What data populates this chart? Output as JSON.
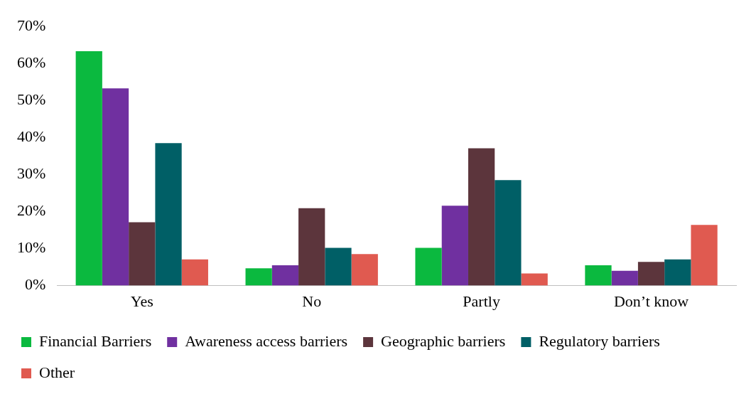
{
  "chart_data": {
    "type": "bar",
    "categories": [
      "Yes",
      "No",
      "Partly",
      "Don’t know"
    ],
    "series": [
      {
        "name": "Financial Barriers",
        "color": "#0bb93f",
        "values": [
          63.3,
          4.7,
          10.2,
          5.5
        ]
      },
      {
        "name": "Awareness access barriers",
        "color": "#7030a0",
        "values": [
          53.3,
          5.5,
          21.6,
          4.0
        ]
      },
      {
        "name": "Geographic barriers",
        "color": "#5c353c",
        "values": [
          17.1,
          20.9,
          37.1,
          6.4
        ]
      },
      {
        "name": "Regulatory barriers",
        "color": "#005f66",
        "values": [
          38.5,
          10.2,
          28.5,
          7.1
        ]
      },
      {
        "name": "Other",
        "color": "#e05a50",
        "values": [
          7.1,
          8.5,
          3.3,
          16.4
        ]
      }
    ],
    "ylim": [
      0,
      70
    ],
    "yticks": [
      {
        "value": 0,
        "label": "0%"
      },
      {
        "value": 10,
        "label": "10%"
      },
      {
        "value": 20,
        "label": "20%"
      },
      {
        "value": 30,
        "label": "30%"
      },
      {
        "value": 40,
        "label": "40%"
      },
      {
        "value": 50,
        "label": "50%"
      },
      {
        "value": 60,
        "label": "60%"
      },
      {
        "value": 70,
        "label": "70%"
      }
    ],
    "grid": false,
    "legend": "bottom"
  }
}
